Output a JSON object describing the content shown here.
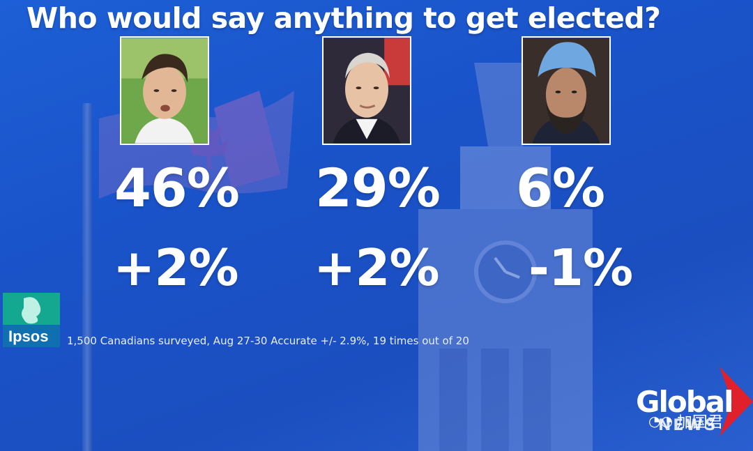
{
  "headline": "Who would say anything to get elected?",
  "candidates": [
    {
      "percent": "46%",
      "change": "+2%"
    },
    {
      "percent": "29%",
      "change": "+2%"
    },
    {
      "percent": "6%",
      "change": "-1%"
    }
  ],
  "pollster": {
    "logo_text": "Ipsos"
  },
  "source_note": "1,500 Canadians surveyed, Aug 27-30 Accurate +/- 2.9%, 19 times out of 20",
  "broadcaster": {
    "line1": "Global",
    "line2": "NEWS"
  },
  "watermark": "加国君",
  "colors": {
    "background": "#1b55c9",
    "text": "#ffffff",
    "global_red": "#e0202a",
    "ipsos_green": "#13a88f"
  }
}
